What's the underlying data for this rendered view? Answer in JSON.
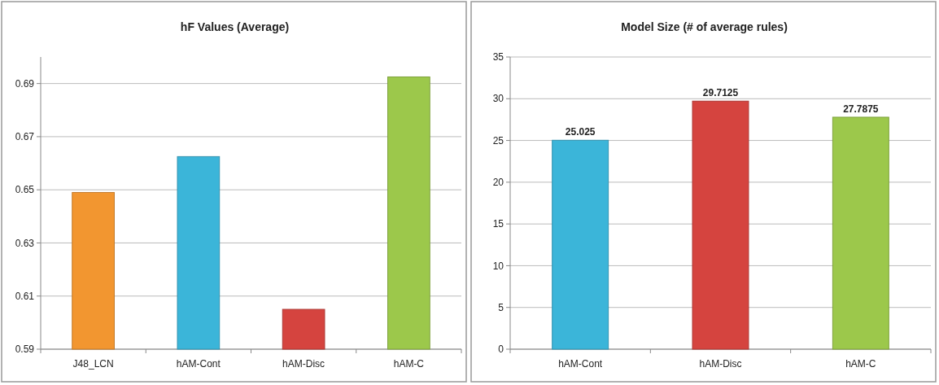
{
  "chart_data": [
    {
      "type": "bar",
      "title": "hF Values (Average)",
      "categories": [
        "J48_LCN",
        "hAM-Cont",
        "hAM-Disc",
        "hAM-C"
      ],
      "values": [
        0.649,
        0.6625,
        0.605,
        0.6925
      ],
      "colors": [
        "#f29630",
        "#3bb5d9",
        "#d5443f",
        "#9cc84b"
      ],
      "ylim": [
        0.59,
        0.7
      ],
      "yticks": [
        0.59,
        0.61,
        0.63,
        0.65,
        0.67,
        0.69
      ],
      "grid": "y"
    },
    {
      "type": "bar",
      "title": "Model Size (# of average rules)",
      "categories": [
        "hAM-Cont",
        "hAM-Disc",
        "hAM-C"
      ],
      "values": [
        25.025,
        29.7125,
        27.7875
      ],
      "colors": [
        "#3bb5d9",
        "#d5443f",
        "#9cc84b"
      ],
      "ylim": [
        0,
        35
      ],
      "yticks": [
        0,
        5,
        10,
        15,
        20,
        25,
        30,
        35
      ],
      "grid": "y",
      "data_labels": true
    }
  ]
}
